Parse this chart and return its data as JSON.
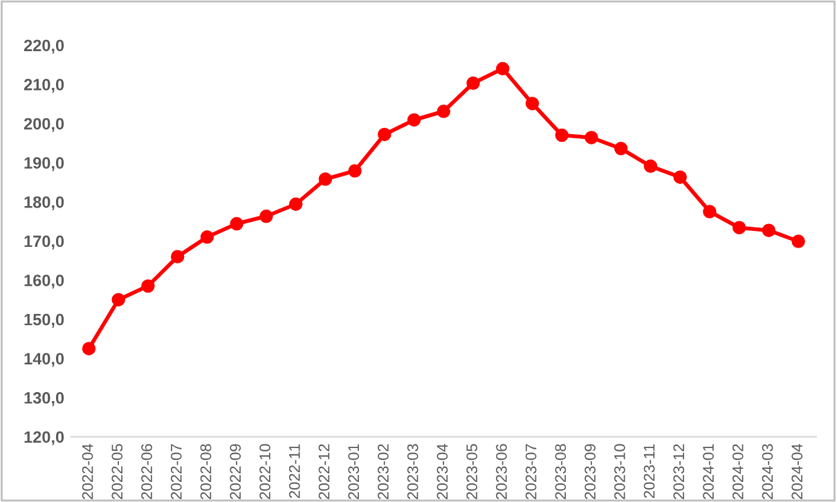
{
  "chart_data": {
    "type": "line",
    "categories": [
      "2022-04",
      "2022-05",
      "2022-06",
      "2022-07",
      "2022-08",
      "2022-09",
      "2022-10",
      "2022-11",
      "2022-12",
      "2023-01",
      "2023-02",
      "2023-03",
      "2023-04",
      "2023-05",
      "2023-06",
      "2023-07",
      "2023-08",
      "2023-09",
      "2023-10",
      "2023-11",
      "2023-12",
      "2024-01",
      "2024-02",
      "2024-03",
      "2024-04"
    ],
    "series": [
      {
        "color": "#ff0000",
        "values": [
          142.5,
          155.0,
          158.5,
          166.0,
          171.0,
          174.4,
          176.3,
          179.4,
          185.8,
          187.9,
          197.2,
          200.9,
          203.1,
          210.3,
          214.0,
          205.1,
          197.0,
          196.4,
          193.6,
          189.1,
          186.3,
          177.5,
          173.4,
          172.7,
          169.9
        ]
      }
    ],
    "ylim": [
      120,
      220
    ],
    "yticks": [
      {
        "value": 120,
        "label": "120,0"
      },
      {
        "value": 130,
        "label": "130,0"
      },
      {
        "value": 140,
        "label": "140,0"
      },
      {
        "value": 150,
        "label": "150,0"
      },
      {
        "value": 160,
        "label": "160,0"
      },
      {
        "value": 170,
        "label": "170,0"
      },
      {
        "value": 180,
        "label": "180,0"
      },
      {
        "value": 190,
        "label": "190,0"
      },
      {
        "value": 200,
        "label": "200,0"
      },
      {
        "value": 210,
        "label": "210,0"
      },
      {
        "value": 220,
        "label": "220,0"
      }
    ],
    "grid": false,
    "marker": "circle",
    "line_style": "solid",
    "legend": false
  }
}
